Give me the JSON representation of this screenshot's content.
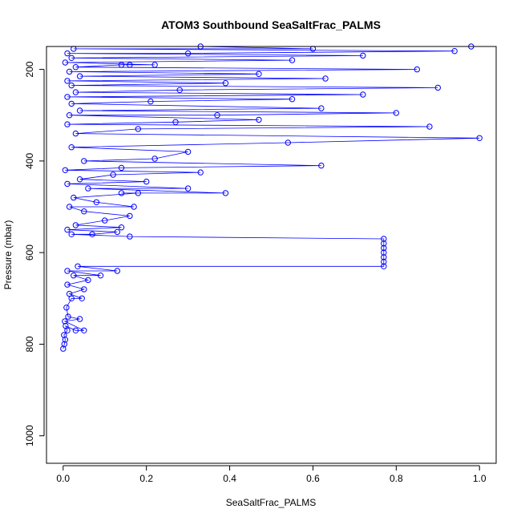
{
  "chart_data": {
    "type": "scatter",
    "title": "ATOM3 Southbound SeaSaltFrac_PALMS",
    "xlabel": "SeaSaltFrac_PALMS",
    "ylabel": "Pressure (mbar)",
    "xlim": [
      -0.04,
      1.04
    ],
    "ylim": [
      1060,
      150
    ],
    "y_reversed": true,
    "x_ticks": [
      0.0,
      0.2,
      0.4,
      0.6,
      0.8,
      1.0
    ],
    "x_tick_labels": [
      "0.0",
      "0.2",
      "0.4",
      "0.6",
      "0.8",
      "1.0"
    ],
    "y_ticks": [
      200,
      400,
      600,
      800,
      1000
    ],
    "y_tick_labels": [
      "200",
      "400",
      "600",
      "800",
      "1000"
    ],
    "marker": "open-circle",
    "connect_points": true,
    "color": "#0000ff",
    "grid": false,
    "legend": "none",
    "series": [
      {
        "points": [
          [
            0.0,
            810
          ],
          [
            0.003,
            800
          ],
          [
            0.005,
            790
          ],
          [
            0.002,
            780
          ],
          [
            0.01,
            770
          ],
          [
            0.006,
            760
          ],
          [
            0.03,
            770
          ],
          [
            0.05,
            770
          ],
          [
            0.004,
            750
          ],
          [
            0.04,
            745
          ],
          [
            0.012,
            740
          ],
          [
            0.008,
            720
          ],
          [
            0.02,
            700
          ],
          [
            0.045,
            700
          ],
          [
            0.015,
            690
          ],
          [
            0.05,
            680
          ],
          [
            0.01,
            670
          ],
          [
            0.06,
            660
          ],
          [
            0.025,
            650
          ],
          [
            0.09,
            650
          ],
          [
            0.01,
            640
          ],
          [
            0.13,
            640
          ],
          [
            0.035,
            630
          ],
          [
            0.77,
            630
          ],
          [
            0.77,
            620
          ],
          [
            0.77,
            610
          ],
          [
            0.77,
            600
          ],
          [
            0.77,
            590
          ],
          [
            0.77,
            580
          ],
          [
            0.77,
            570
          ],
          [
            0.16,
            565
          ],
          [
            0.02,
            560
          ],
          [
            0.07,
            560
          ],
          [
            0.13,
            555
          ],
          [
            0.01,
            550
          ],
          [
            0.14,
            545
          ],
          [
            0.03,
            540
          ],
          [
            0.1,
            530
          ],
          [
            0.16,
            520
          ],
          [
            0.05,
            510
          ],
          [
            0.015,
            500
          ],
          [
            0.17,
            500
          ],
          [
            0.08,
            490
          ],
          [
            0.025,
            480
          ],
          [
            0.18,
            470
          ],
          [
            0.14,
            470
          ],
          [
            0.39,
            470
          ],
          [
            0.06,
            460
          ],
          [
            0.3,
            460
          ],
          [
            0.01,
            450
          ],
          [
            0.2,
            445
          ],
          [
            0.04,
            440
          ],
          [
            0.12,
            430
          ],
          [
            0.33,
            425
          ],
          [
            0.005,
            420
          ],
          [
            0.14,
            415
          ],
          [
            0.62,
            410
          ],
          [
            0.05,
            400
          ],
          [
            0.22,
            395
          ],
          [
            0.3,
            380
          ],
          [
            0.02,
            370
          ],
          [
            0.54,
            360
          ],
          [
            1.0,
            350
          ],
          [
            0.03,
            340
          ],
          [
            0.18,
            330
          ],
          [
            0.88,
            325
          ],
          [
            0.01,
            320
          ],
          [
            0.27,
            315
          ],
          [
            0.47,
            310
          ],
          [
            0.015,
            300
          ],
          [
            0.37,
            300
          ],
          [
            0.8,
            295
          ],
          [
            0.04,
            290
          ],
          [
            0.62,
            285
          ],
          [
            0.02,
            275
          ],
          [
            0.21,
            270
          ],
          [
            0.55,
            265
          ],
          [
            0.01,
            260
          ],
          [
            0.72,
            255
          ],
          [
            0.03,
            250
          ],
          [
            0.28,
            245
          ],
          [
            0.9,
            240
          ],
          [
            0.02,
            235
          ],
          [
            0.39,
            230
          ],
          [
            0.01,
            225
          ],
          [
            0.63,
            220
          ],
          [
            0.04,
            215
          ],
          [
            0.47,
            210
          ],
          [
            0.015,
            205
          ],
          [
            0.85,
            200
          ],
          [
            0.03,
            195
          ],
          [
            0.14,
            190
          ],
          [
            0.16,
            190
          ],
          [
            0.22,
            190
          ],
          [
            0.005,
            185
          ],
          [
            0.55,
            180
          ],
          [
            0.02,
            175
          ],
          [
            0.72,
            170
          ],
          [
            0.01,
            165
          ],
          [
            0.3,
            165
          ],
          [
            0.94,
            160
          ],
          [
            0.025,
            155
          ],
          [
            0.6,
            155
          ],
          [
            0.33,
            150
          ],
          [
            0.98,
            150
          ]
        ]
      }
    ]
  }
}
